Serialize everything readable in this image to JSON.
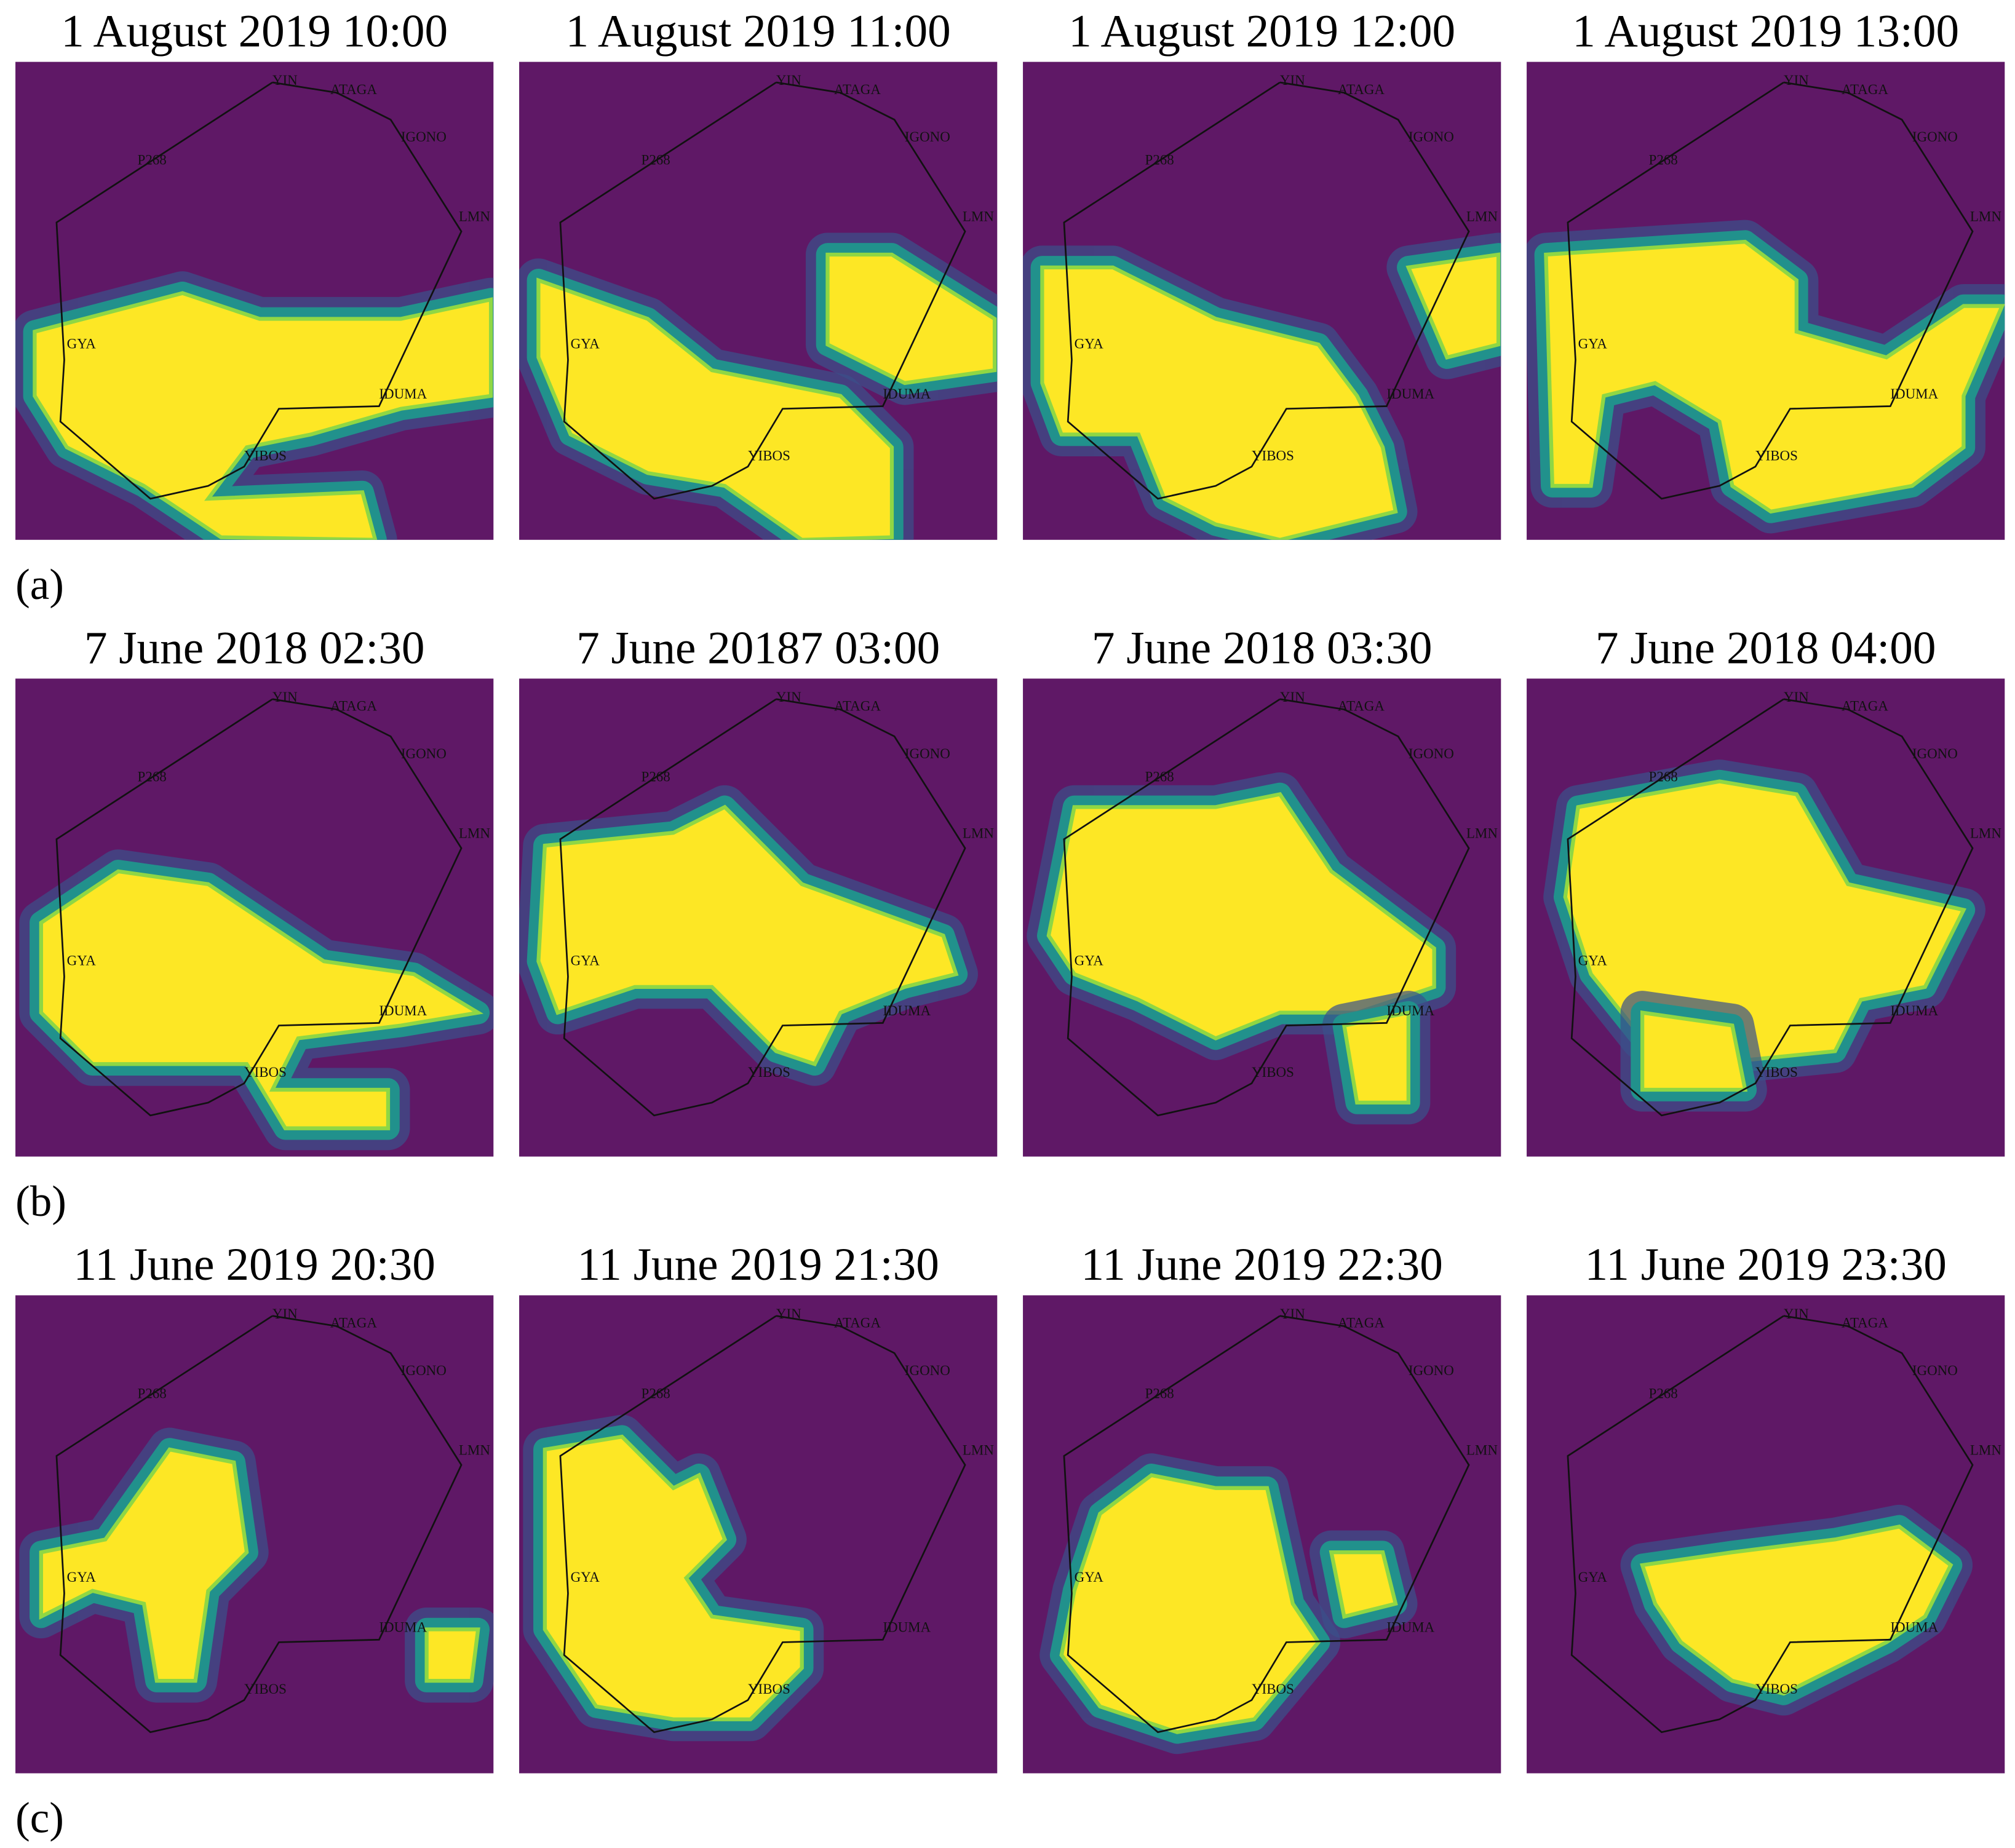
{
  "figure": {
    "rows": [
      {
        "label": "(a)",
        "titles": [
          "1 August 2019 10:00",
          "1 August 2019 11:00",
          "1 August 2019 12:00",
          "1 August 2019 13:00"
        ]
      },
      {
        "label": "(b)",
        "titles": [
          "7 June 2018 02:30",
          "7 June 20187 03:00",
          "7 June 2018 03:30",
          "7 June 2018 04:00"
        ]
      },
      {
        "label": "(c)",
        "titles": [
          "11 June 2019 20:30",
          "11 June 2019 21:30",
          "11 June 2019 22:30",
          "11 June 2019 23:30"
        ]
      }
    ],
    "waypoints": [
      "YIN",
      "ATAGA",
      "IGONO",
      "LMN",
      "P268",
      "GYA",
      "IDUMA",
      "YIBOS"
    ]
  }
}
